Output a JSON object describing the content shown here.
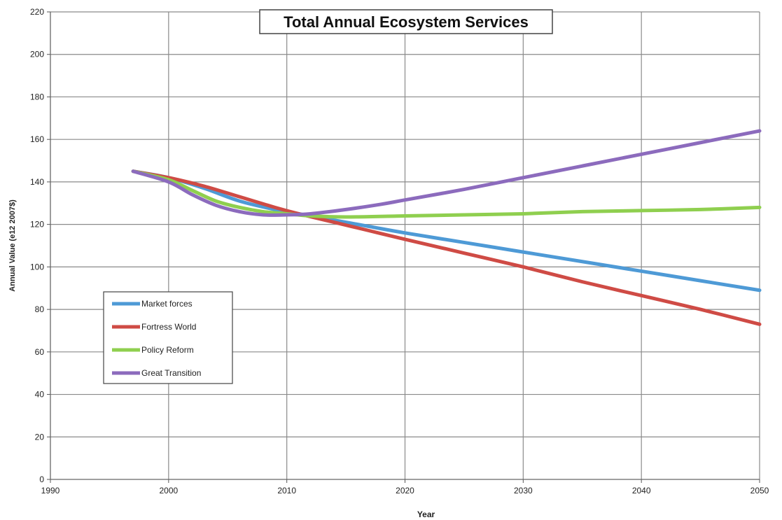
{
  "chart_data": {
    "type": "line",
    "title": "Total Annual Ecosystem Services",
    "xlabel": "Year",
    "ylabel": "Annual Value (e12 2007$)",
    "xlim": [
      1990,
      2050
    ],
    "ylim": [
      0,
      220
    ],
    "xticks": [
      1990,
      2000,
      2010,
      2020,
      2030,
      2040,
      2050
    ],
    "yticks": [
      0,
      20,
      40,
      60,
      80,
      100,
      120,
      140,
      160,
      180,
      200,
      220
    ],
    "grid": true,
    "legend_position": "lower-left",
    "colors": {
      "Market forces": "#4e9ad6",
      "Fortress World": "#cf4b45",
      "Policy Reform": "#8fcf4f",
      "Great Transition": "#8c6bbd"
    },
    "series": [
      {
        "name": "Market forces",
        "x": [
          1997,
          2000,
          2003,
          2006,
          2009,
          2011,
          2014,
          2017,
          2020,
          2025,
          2030,
          2035,
          2040,
          2045,
          2050
        ],
        "y": [
          145,
          142,
          137,
          131,
          127,
          125,
          122,
          119,
          116,
          111.5,
          107,
          102.5,
          98,
          93.5,
          89
        ]
      },
      {
        "name": "Fortress World",
        "x": [
          1997,
          2000,
          2003,
          2006,
          2009,
          2011,
          2014,
          2017,
          2020,
          2025,
          2030,
          2035,
          2040,
          2045,
          2050
        ],
        "y": [
          145,
          142,
          138,
          133,
          128,
          125,
          121,
          117,
          113,
          106.5,
          100,
          93,
          86.5,
          80,
          73
        ]
      },
      {
        "name": "Policy Reform",
        "x": [
          1997,
          2000,
          2002,
          2004,
          2006,
          2008,
          2010,
          2012,
          2015,
          2020,
          2025,
          2030,
          2035,
          2040,
          2045,
          2050
        ],
        "y": [
          145,
          141,
          136,
          131,
          128,
          126,
          125,
          124,
          123.5,
          124,
          124.5,
          125,
          126,
          126.5,
          127,
          128
        ]
      },
      {
        "name": "Great Transition",
        "x": [
          1997,
          2000,
          2002,
          2004,
          2006,
          2008,
          2010,
          2012,
          2015,
          2018,
          2020,
          2025,
          2030,
          2035,
          2040,
          2045,
          2050
        ],
        "y": [
          145,
          140,
          134,
          129,
          126,
          124.5,
          124.5,
          125,
          127,
          129.5,
          131.5,
          136.5,
          142,
          147.5,
          153,
          158.5,
          164
        ]
      }
    ]
  }
}
